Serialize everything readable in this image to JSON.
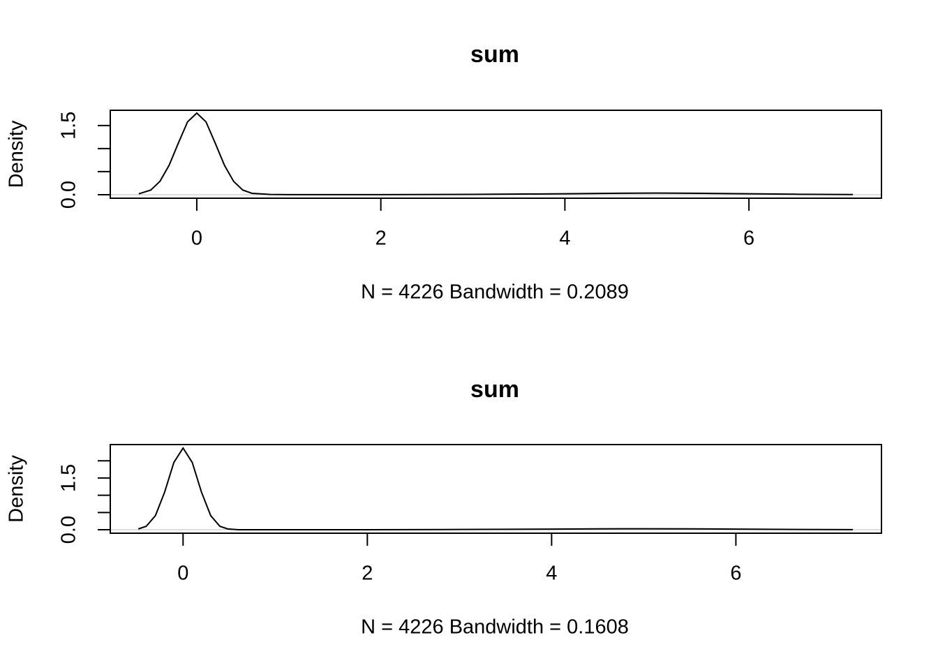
{
  "chart_data": [
    {
      "type": "line",
      "title": "sum",
      "xlabel": "N = 4226   Bandwidth = 0.2089",
      "ylabel": "Density",
      "color": "#000000",
      "x": [
        -0.63,
        -0.5,
        -0.4,
        -0.3,
        -0.2,
        -0.1,
        0,
        0.1,
        0.2,
        0.3,
        0.4,
        0.5,
        0.6,
        0.8,
        1,
        2,
        3,
        4,
        4.5,
        5,
        5.5,
        6,
        6.5,
        7.13
      ],
      "values": [
        0.02,
        0.1,
        0.29,
        0.64,
        1.12,
        1.58,
        1.77,
        1.58,
        1.12,
        0.64,
        0.29,
        0.1,
        0.03,
        0.005,
        0.002,
        0.002,
        0.008,
        0.02,
        0.03,
        0.035,
        0.03,
        0.02,
        0.01,
        0.003
      ],
      "xlim": [
        -0.94,
        7.44
      ],
      "ylim": [
        -0.076,
        1.83
      ],
      "xticks": [
        0,
        2,
        4,
        6
      ],
      "yticks": [
        {
          "value": 0,
          "label": "0.0"
        },
        {
          "value": 0.5,
          "label": null
        },
        {
          "value": 1,
          "label": null
        },
        1.5
      ]
    },
    {
      "type": "line",
      "title": "sum",
      "xlabel": "N = 4226   Bandwidth = 0.1608",
      "ylabel": "Density",
      "color": "#000000",
      "x": [
        -0.485,
        -0.4,
        -0.3,
        -0.2,
        -0.1,
        0,
        0.1,
        0.2,
        0.3,
        0.4,
        0.485,
        0.6,
        1,
        2,
        3,
        4,
        4.5,
        5,
        5.5,
        6,
        6.5,
        7.27
      ],
      "values": [
        0.024,
        0.1,
        0.41,
        1.09,
        1.95,
        2.37,
        1.95,
        1.09,
        0.41,
        0.1,
        0.024,
        0.002,
        0.001,
        0.002,
        0.008,
        0.02,
        0.027,
        0.03,
        0.027,
        0.02,
        0.01,
        0.003
      ],
      "xlim": [
        -0.79,
        7.58
      ],
      "ylim": [
        -0.1,
        2.47
      ],
      "xticks": [
        0,
        2,
        4,
        6
      ],
      "yticks": [
        {
          "value": 0,
          "label": "0.0"
        },
        {
          "value": 0.5,
          "label": null
        },
        {
          "value": 1,
          "label": null
        },
        1.5,
        {
          "value": 2,
          "label": null
        }
      ]
    }
  ]
}
